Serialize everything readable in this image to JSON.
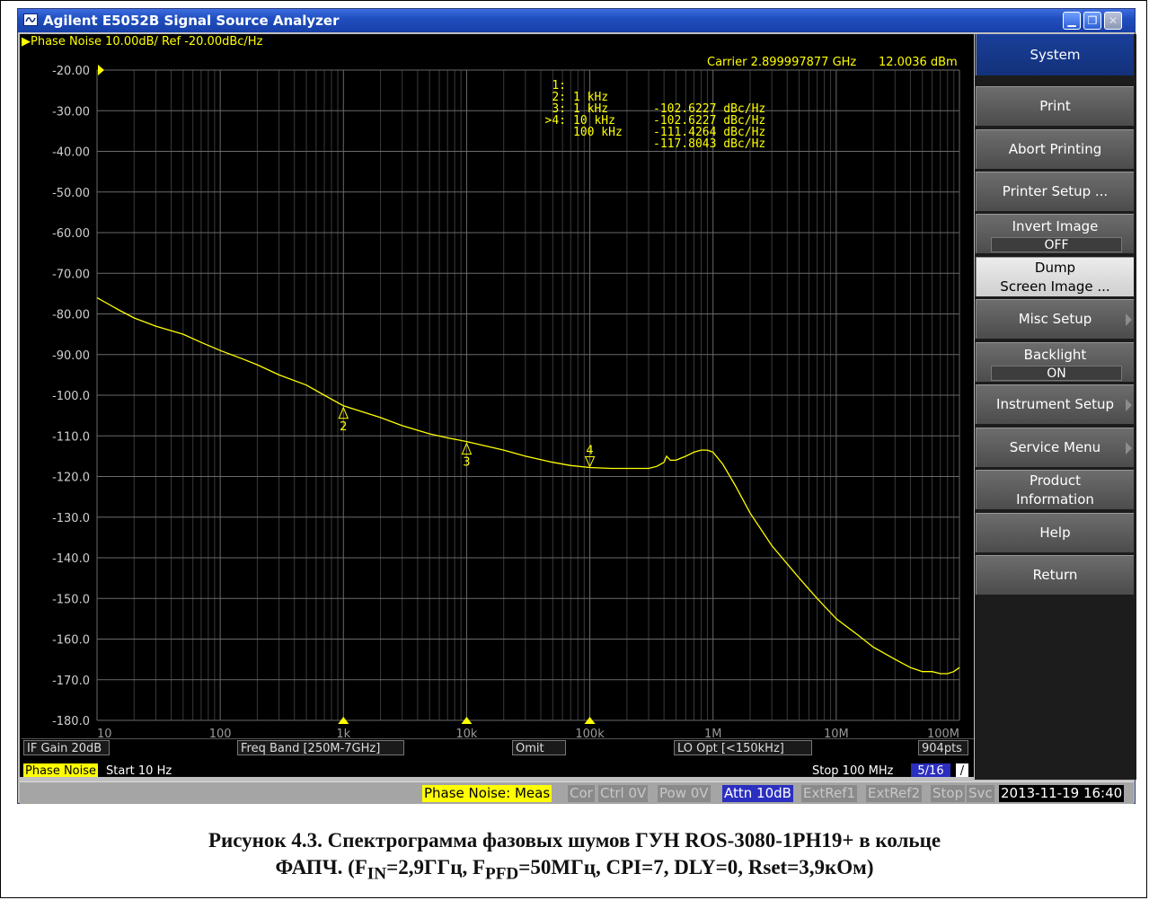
{
  "window": {
    "title": "Agilent E5052B Signal Source Analyzer",
    "buttons": {
      "minimize": "minimize-icon",
      "maximize": "restore-icon",
      "close": "close-icon"
    }
  },
  "trace": {
    "header": "Phase Noise 10.00dB/ Ref -20.00dBc/Hz",
    "carrier": "Carrier 2.899997877 GHz",
    "carrier_power": "12.0036 dBm",
    "color": "#ffff00"
  },
  "markers_table": [
    {
      "idx": "1:",
      "freq": "1 kHz",
      "value": "-102.6227 dBc/Hz"
    },
    {
      "idx": "2:",
      "freq": "1 kHz",
      "value": "-102.6227 dBc/Hz"
    },
    {
      "idx": "3:",
      "freq": "10 kHz",
      "value": "-111.4264 dBc/Hz"
    },
    {
      "idx": ">4:",
      "freq": "100 kHz",
      "value": "-117.8043 dBc/Hz"
    }
  ],
  "chart_data": {
    "type": "line",
    "title": "Phase Noise 10.00dB/ Ref -20.00dBc/Hz",
    "x_scale": "log",
    "xlim": [
      10,
      100000000
    ],
    "ylim": [
      -180,
      -20
    ],
    "y_ticks": [
      "-20.00",
      "-30.00",
      "-40.00",
      "-50.00",
      "-60.00",
      "-70.00",
      "-80.00",
      "-90.00",
      "-100.0",
      "-110.0",
      "-120.0",
      "-130.0",
      "-140.0",
      "-150.0",
      "-160.0",
      "-170.0",
      "-180.0"
    ],
    "y_tick_values": [
      -20,
      -30,
      -40,
      -50,
      -60,
      -70,
      -80,
      -90,
      -100,
      -110,
      -120,
      -130,
      -140,
      -150,
      -160,
      -170,
      -180
    ],
    "x_ticks": [
      "10",
      "100",
      "1k",
      "10k",
      "100k",
      "1M",
      "10M",
      "100M"
    ],
    "x_tick_values": [
      10,
      100,
      1000,
      10000,
      100000,
      1000000,
      10000000,
      100000000
    ],
    "grid": true,
    "series": [
      {
        "x": [
          10,
          15,
          20,
          30,
          50,
          70,
          100,
          150,
          200,
          300,
          500,
          700,
          1000,
          2000,
          3000,
          5000,
          7000,
          10000,
          20000,
          30000,
          50000,
          70000,
          100000,
          150000,
          200000,
          300000,
          350000,
          400000,
          420000,
          450000,
          500000,
          600000,
          700000,
          800000,
          900000,
          1000000,
          1200000,
          1500000,
          2000000,
          3000000,
          5000000,
          7000000,
          10000000,
          15000000,
          20000000,
          30000000,
          40000000,
          50000000,
          60000000,
          70000000,
          80000000,
          90000000,
          100000000
        ],
        "y": [
          -76,
          -79,
          -81,
          -83,
          -85,
          -87,
          -89,
          -91,
          -92.5,
          -95,
          -97.5,
          -100,
          -102.6,
          -105.5,
          -107.5,
          -109.5,
          -110.5,
          -111.4,
          -113.5,
          -115,
          -116.5,
          -117.3,
          -117.8,
          -118,
          -118,
          -118,
          -117.5,
          -116.5,
          -115,
          -116,
          -116,
          -115,
          -114,
          -113.5,
          -113.5,
          -114,
          -117,
          -122,
          -129,
          -137,
          -145,
          -150,
          -155,
          -159,
          -162,
          -165,
          -167,
          -168,
          -168,
          -168.5,
          -168.5,
          -168,
          -167
        ]
      }
    ],
    "markers": [
      {
        "label": "2",
        "x": 1000,
        "y": -102.6
      },
      {
        "label": "3",
        "x": 10000,
        "y": -111.4
      },
      {
        "label": "4",
        "x": 100000,
        "y": -117.8
      }
    ]
  },
  "info_bar": {
    "if_gain": "IF Gain 20dB",
    "freq_band": "Freq Band [250M-7GHz]",
    "omit": "Omit",
    "lo_opt": "LO Opt [<150kHz]",
    "points": "904pts"
  },
  "sweep_bar": {
    "meas": "Phase Noise",
    "start": "Start 10 Hz",
    "stop": "Stop 100 MHz",
    "trace_count": "5/16",
    "mark": "/"
  },
  "status_bar": {
    "items": [
      "Phase Noise: Meas",
      "Cor",
      "Ctrl 0V",
      "Pow 0V",
      "Attn 10dB",
      "ExtRef1",
      "ExtRef2",
      "Stop",
      "Svc",
      "2013-11-19 16:40"
    ],
    "colors": {
      "meas": "#ffff00",
      "attn": "#2b2fbf",
      "inactive": "#8a8a8a"
    }
  },
  "softkeys": {
    "system": "System",
    "print": "Print",
    "abort": "Abort Printing",
    "printer_setup": "Printer Setup ...",
    "invert_label": "Invert Image",
    "invert_value": "OFF",
    "dump_1": "Dump",
    "dump_2": "Screen Image ...",
    "misc": "Misc Setup",
    "backlight_label": "Backlight",
    "backlight_value": "ON",
    "instrument": "Instrument Setup",
    "service": "Service Menu",
    "product_1": "Product",
    "product_2": "Information",
    "help": "Help",
    "return": "Return"
  },
  "caption": {
    "line1": "Рисунок 4.3. Спектрограмма фазовых шумов ГУН ROS-3080-1PH19+ в кольце",
    "l2_a": "ФАПЧ. (F",
    "l2_sub1": "IN",
    "l2_b": "=2,9ГГц, F",
    "l2_sub2": "PFD",
    "l2_c": "=50МГц, CPI=7, DLY=0, Rset=3,9кОм)"
  }
}
